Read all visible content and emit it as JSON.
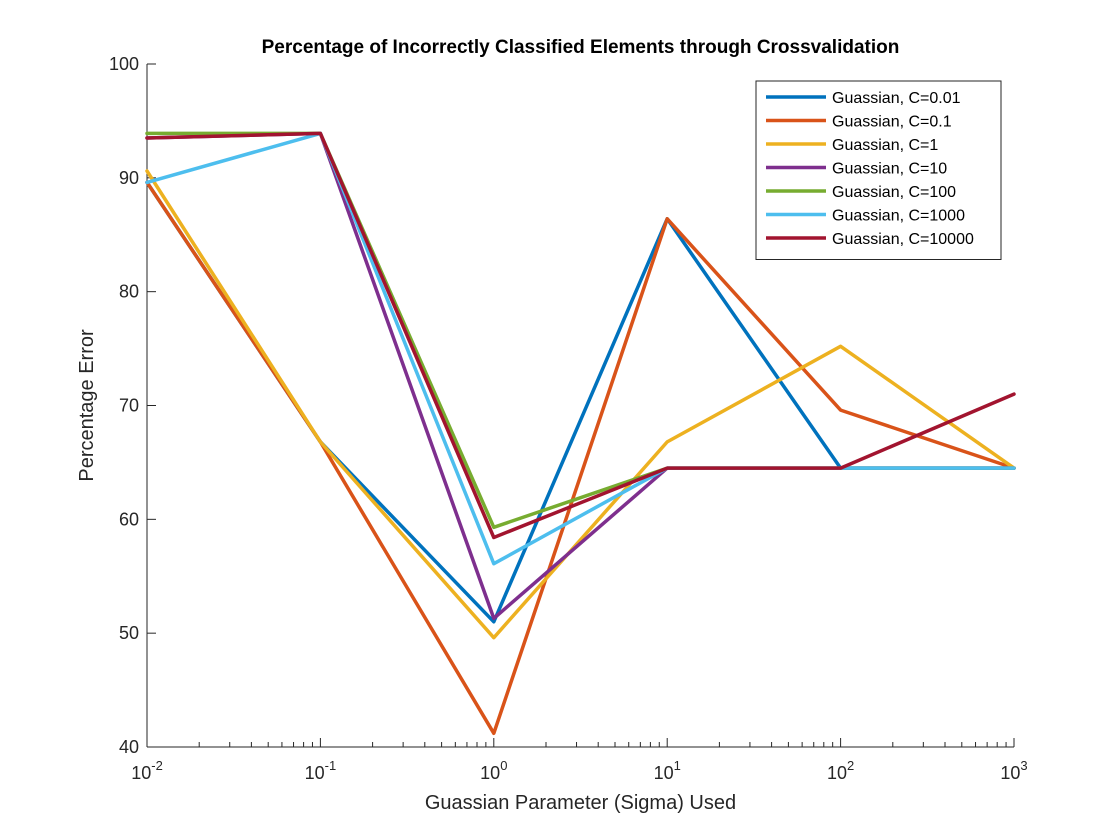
{
  "chart_data": {
    "type": "line",
    "title": "Percentage of Incorrectly Classified Elements through Crossvalidation",
    "xlabel": "Guassian Parameter (Sigma) Used",
    "ylabel": "Percentage Error",
    "x_scale": "log",
    "xlim": [
      0.01,
      1000
    ],
    "ylim": [
      40,
      100
    ],
    "x": [
      0.01,
      0.1,
      1,
      10,
      100,
      1000
    ],
    "x_ticks": [
      {
        "value": 0.01,
        "base": "10",
        "exp": "-2"
      },
      {
        "value": 0.1,
        "base": "10",
        "exp": "-1"
      },
      {
        "value": 1,
        "base": "10",
        "exp": "0"
      },
      {
        "value": 10,
        "base": "10",
        "exp": "1"
      },
      {
        "value": 100,
        "base": "10",
        "exp": "2"
      },
      {
        "value": 1000,
        "base": "10",
        "exp": "3"
      }
    ],
    "y_ticks": [
      {
        "value": 40,
        "label": "40"
      },
      {
        "value": 50,
        "label": "50"
      },
      {
        "value": 60,
        "label": "60"
      },
      {
        "value": 70,
        "label": "70"
      },
      {
        "value": 80,
        "label": "80"
      },
      {
        "value": 90,
        "label": "90"
      },
      {
        "value": 100,
        "label": "100"
      }
    ],
    "grid": false,
    "legend_position": "top-right",
    "series": [
      {
        "name": "Guassian, C=0.01",
        "color": "#0072BD",
        "values": [
          89.6,
          66.8,
          51.0,
          86.4,
          64.5,
          64.5
        ]
      },
      {
        "name": "Guassian, C=0.1",
        "color": "#D95319",
        "values": [
          89.6,
          66.8,
          41.2,
          86.4,
          69.6,
          64.5
        ]
      },
      {
        "name": "Guassian, C=1",
        "color": "#EDB120",
        "values": [
          90.6,
          66.8,
          49.6,
          66.8,
          75.2,
          64.5
        ]
      },
      {
        "name": "Guassian, C=10",
        "color": "#7E2F8E",
        "values": [
          93.5,
          93.9,
          51.3,
          64.5,
          64.5,
          64.5
        ]
      },
      {
        "name": "Guassian, C=100",
        "color": "#77AC30",
        "values": [
          93.9,
          93.9,
          59.3,
          64.5,
          64.5,
          64.5
        ]
      },
      {
        "name": "Guassian, C=1000",
        "color": "#4DBEEE",
        "values": [
          89.6,
          93.9,
          56.1,
          64.5,
          64.5,
          64.5
        ]
      },
      {
        "name": "Guassian, C=10000",
        "color": "#A2142F",
        "values": [
          93.5,
          93.9,
          58.4,
          64.5,
          64.5,
          71.0
        ]
      }
    ]
  }
}
